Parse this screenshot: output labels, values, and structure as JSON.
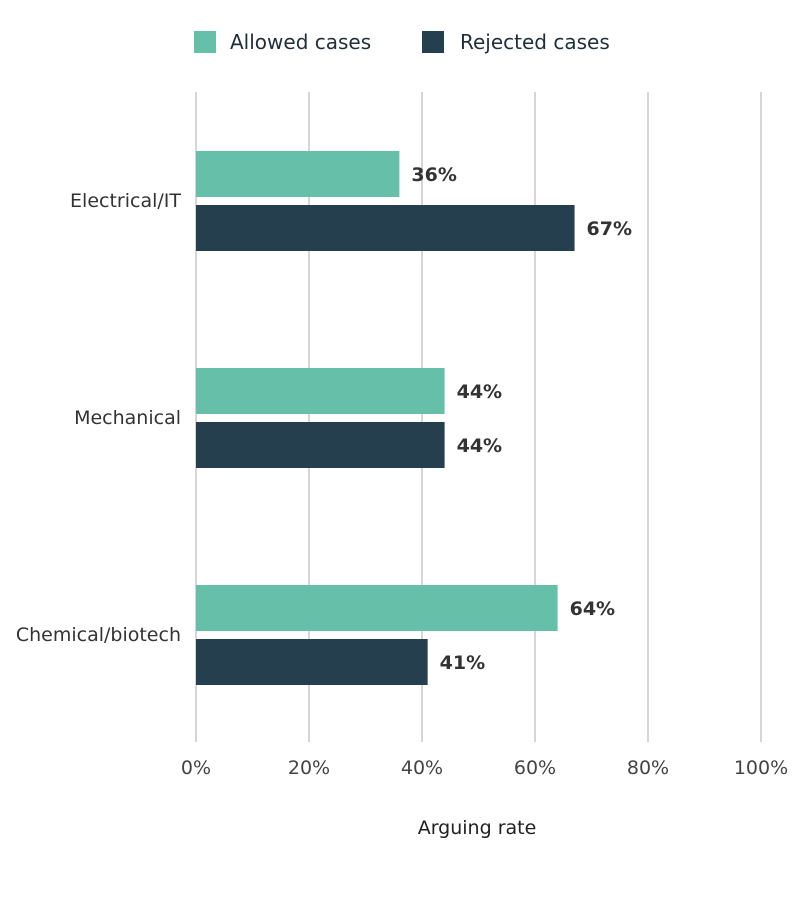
{
  "chart_data": {
    "type": "bar",
    "orientation": "horizontal",
    "categories": [
      "Electrical/IT",
      "Mechanical",
      "Chemical/biotech"
    ],
    "series": [
      {
        "name": "Allowed cases",
        "values": [
          36,
          44,
          64
        ],
        "color": "#66bfa9"
      },
      {
        "name": "Rejected cases",
        "values": [
          67,
          44,
          41
        ],
        "color": "#263f4e"
      }
    ],
    "value_labels": [
      [
        "36%",
        "44%",
        "64%"
      ],
      [
        "67%",
        "44%",
        "41%"
      ]
    ],
    "xlim": [
      0,
      100
    ],
    "xticks": [
      0,
      20,
      40,
      60,
      80,
      100
    ],
    "xtick_labels": [
      "0%",
      "20%",
      "40%",
      "60%",
      "80%",
      "100%"
    ],
    "xlabel": "Arguing rate",
    "ylabel": "",
    "grid": true,
    "legend_position": "top"
  }
}
